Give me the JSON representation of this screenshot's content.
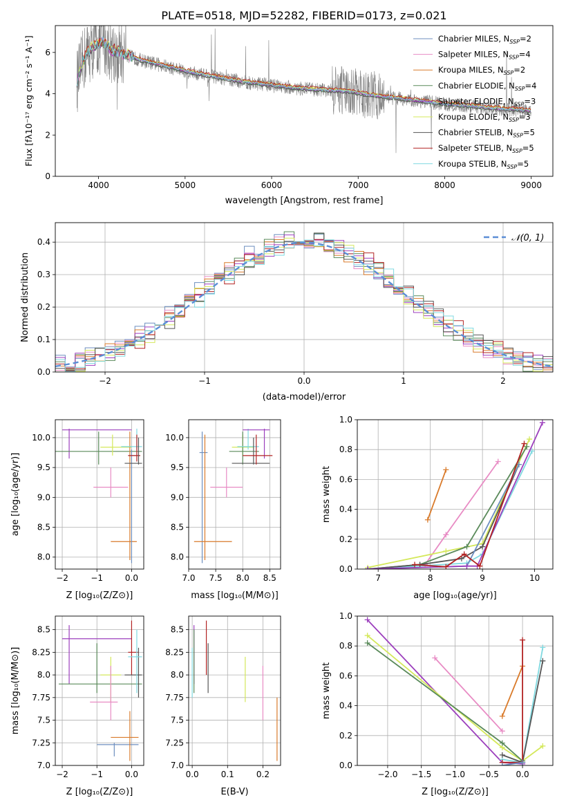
{
  "figure_title": "PLATE=0518, MJD=52282, FIBERID=0173, z=0.021",
  "chart_data": [
    {
      "id": "spectrum",
      "type": "line",
      "title": "PLATE=0518, MJD=52282, FIBERID=0173, z=0.021",
      "xlabel": "wavelength [Angstrom, rest frame]",
      "ylabel": "Flux [f_λ 10^-17 erg cm^-2 s^-1 A^-1]",
      "xlim": [
        3500,
        9250
      ],
      "ylim": [
        0,
        7.3
      ],
      "xticks": [
        4000,
        5000,
        6000,
        7000,
        8000,
        9000
      ],
      "yticks": [
        0,
        2,
        4,
        6
      ],
      "grid": false,
      "legend_position": "top-right",
      "data_continuum": {
        "x": [
          3750,
          3850,
          3950,
          4050,
          4150,
          4300,
          4500,
          4700,
          4900,
          5100,
          5300,
          5500,
          5700,
          5900,
          6100,
          6300,
          6500,
          6700,
          6900,
          7100,
          7300,
          7500,
          7700,
          7900,
          8100,
          8300,
          8500,
          8700,
          8900,
          9000
        ],
        "y": [
          4.6,
          5.9,
          6.3,
          6.5,
          6.1,
          5.9,
          5.6,
          5.4,
          5.2,
          5.0,
          4.85,
          4.7,
          4.55,
          4.45,
          4.35,
          4.25,
          4.2,
          4.15,
          4.1,
          3.95,
          3.85,
          3.75,
          3.65,
          3.55,
          3.45,
          3.4,
          3.3,
          3.25,
          3.2,
          3.15
        ]
      },
      "series": [
        {
          "name": "Chabrier MILES, N_SSP=2",
          "color": "#6c8ebf",
          "offset": 0.03
        },
        {
          "name": "Salpeter MILES, N_SSP=4",
          "color": "#e88bc4",
          "offset": -0.02
        },
        {
          "name": "Kroupa MILES, N_SSP=2",
          "color": "#d97a2a",
          "offset": 0.05
        },
        {
          "name": "Chabrier ELODIE, N_SSP=4",
          "color": "#5a8a5a",
          "offset": -0.04
        },
        {
          "name": "Salpeter ELODIE, N_SSP=3",
          "color": "#9c3fbd",
          "offset": 0.0
        },
        {
          "name": "Kroupa ELODIE, N_SSP=3",
          "color": "#d4e85a",
          "offset": 0.08
        },
        {
          "name": "Chabrier STELIB, N_SSP=5",
          "color": "#555555",
          "offset": -0.06
        },
        {
          "name": "Salpeter STELIB, N_SSP=5",
          "color": "#b22222",
          "offset": 0.1
        },
        {
          "name": "Kroupa STELIB, N_SSP=5",
          "color": "#7fd9e0",
          "offset": 0.02
        }
      ],
      "legend": [
        {
          "name": "Chabrier MILES, N",
          "sub": "SSP",
          "n": "=2"
        },
        {
          "name": "Salpeter MILES, N",
          "sub": "SSP",
          "n": "=4"
        },
        {
          "name": "Kroupa MILES, N",
          "sub": "SSP",
          "n": "=2"
        },
        {
          "name": "Chabrier ELODIE, N",
          "sub": "SSP",
          "n": "=4"
        },
        {
          "name": "Salpeter ELODIE, N",
          "sub": "SSP",
          "n": "=3"
        },
        {
          "name": "Kroupa ELODIE, N",
          "sub": "SSP",
          "n": "=3"
        },
        {
          "name": "Chabrier STELIB, N",
          "sub": "SSP",
          "n": "=5"
        },
        {
          "name": "Salpeter STELIB, N",
          "sub": "SSP",
          "n": "=5"
        },
        {
          "name": "Kroupa STELIB, N",
          "sub": "SSP",
          "n": "=5"
        }
      ]
    },
    {
      "id": "residuals",
      "type": "histogram",
      "xlabel": "(data-model)/error",
      "ylabel": "Normed distribution",
      "xlim": [
        -2.5,
        2.5
      ],
      "ylim": [
        0,
        0.46
      ],
      "xticks": [
        -2,
        -1,
        0,
        1,
        2
      ],
      "yticks": [
        0.0,
        0.1,
        0.2,
        0.3,
        0.4
      ],
      "grid": true,
      "legend": [
        {
          "label": "N(0,1)",
          "style": "dashed",
          "color": "#5b8ed6"
        }
      ]
    },
    {
      "id": "age_vs_Z",
      "type": "errorbar",
      "xlabel": "Z [log10(Z/Z⊙)]",
      "ylabel": "age [log10(age/yr)]",
      "xlim": [
        -2.2,
        0.35
      ],
      "ylim": [
        7.8,
        10.3
      ],
      "xticks": [
        -2,
        -1,
        0
      ],
      "yticks": [
        8.0,
        8.5,
        9.0,
        9.5,
        10.0
      ],
      "grid": true,
      "points": [
        {
          "color": "#9c3fbd",
          "x": [
            -2.0,
            0.0
          ],
          "y": [
            9.65,
            10.15
          ],
          "cx": -1.8,
          "cy": 10.13
        },
        {
          "color": "#5a8a5a",
          "x": [
            -2.2,
            0.3
          ],
          "y": [
            9.55,
            10.1
          ],
          "cx": -0.95,
          "cy": 9.77
        },
        {
          "color": "#d4e85a",
          "x": [
            -0.9,
            0.0
          ],
          "y": [
            9.7,
            10.05
          ],
          "cx": -0.55,
          "cy": 9.84
        },
        {
          "color": "#e88bc4",
          "x": [
            -1.1,
            -0.1
          ],
          "y": [
            9.0,
            9.5
          ],
          "cx": -0.6,
          "cy": 9.17
        },
        {
          "color": "#d97a2a",
          "x": [
            -0.6,
            0.15
          ],
          "y": [
            7.95,
            10.1
          ],
          "cx": -0.05,
          "cy": 8.26
        },
        {
          "color": "#6c8ebf",
          "x": [
            -0.1,
            0.2
          ],
          "y": [
            7.9,
            9.8
          ],
          "cx": 0.0,
          "cy": 9.7
        },
        {
          "color": "#7fd9e0",
          "x": [
            -0.3,
            0.3
          ],
          "y": [
            9.8,
            10.15
          ],
          "cx": 0.15,
          "cy": 9.85
        },
        {
          "color": "#b22222",
          "x": [
            -0.1,
            0.25
          ],
          "y": [
            9.6,
            10.05
          ],
          "cx": 0.15,
          "cy": 9.7
        },
        {
          "color": "#555555",
          "x": [
            -0.2,
            0.3
          ],
          "y": [
            9.55,
            10.0
          ],
          "cx": 0.2,
          "cy": 9.57
        }
      ]
    },
    {
      "id": "age_vs_mass",
      "type": "errorbar",
      "xlabel": "mass [log10(M/M⊙)]",
      "ylabel": "",
      "xlim": [
        7.0,
        8.7
      ],
      "ylim": [
        7.8,
        10.3
      ],
      "xticks": [
        7.0,
        7.5,
        8.0,
        8.5
      ],
      "yticks": [
        8.0,
        8.5,
        9.0,
        9.5,
        10.0
      ],
      "grid": true,
      "points": [
        {
          "color": "#6c8ebf",
          "x": [
            7.2,
            7.35
          ],
          "y": [
            7.9,
            10.1
          ],
          "cx": 7.25,
          "cy": 9.75
        },
        {
          "color": "#d97a2a",
          "x": [
            7.1,
            7.8
          ],
          "y": [
            7.95,
            10.05
          ],
          "cx": 7.3,
          "cy": 8.26
        },
        {
          "color": "#e88bc4",
          "x": [
            7.4,
            8.0
          ],
          "y": [
            9.0,
            9.5
          ],
          "cx": 7.7,
          "cy": 9.17
        },
        {
          "color": "#d4e85a",
          "x": [
            7.8,
            8.2
          ],
          "y": [
            9.7,
            10.05
          ],
          "cx": 8.0,
          "cy": 9.84
        },
        {
          "color": "#5a8a5a",
          "x": [
            7.75,
            8.3
          ],
          "y": [
            9.55,
            10.1
          ],
          "cx": 8.0,
          "cy": 9.77
        },
        {
          "color": "#7fd9e0",
          "x": [
            7.9,
            8.3
          ],
          "y": [
            9.8,
            10.15
          ],
          "cx": 8.1,
          "cy": 9.85
        },
        {
          "color": "#9c3fbd",
          "x": [
            8.0,
            8.5
          ],
          "y": [
            9.65,
            10.15
          ],
          "cx": 8.4,
          "cy": 10.13
        },
        {
          "color": "#555555",
          "x": [
            7.8,
            8.5
          ],
          "y": [
            9.55,
            10.0
          ],
          "cx": 8.2,
          "cy": 9.57
        },
        {
          "color": "#b22222",
          "x": [
            8.0,
            8.55
          ],
          "y": [
            9.55,
            10.05
          ],
          "cx": 8.25,
          "cy": 9.7
        }
      ]
    },
    {
      "id": "weight_vs_age",
      "type": "line",
      "xlabel": "age [log10(age/yr)]",
      "ylabel": "mass weight",
      "xlim": [
        6.6,
        10.35
      ],
      "ylim": [
        0,
        1.0
      ],
      "xticks": [
        7,
        8,
        9,
        10
      ],
      "yticks": [
        0.0,
        0.2,
        0.4,
        0.6,
        0.8,
        1.0
      ],
      "grid": true,
      "series": [
        {
          "color": "#d97a2a",
          "x": [
            7.95,
            8.3
          ],
          "y": [
            0.33,
            0.665
          ]
        },
        {
          "color": "#e88bc4",
          "x": [
            7.9,
            8.3,
            9.3
          ],
          "y": [
            0.03,
            0.23,
            0.72
          ]
        },
        {
          "color": "#d4e85a",
          "x": [
            6.8,
            8.3,
            9.0,
            9.9
          ],
          "y": [
            0.01,
            0.12,
            0.17,
            0.87
          ]
        },
        {
          "color": "#7fd9e0",
          "x": [
            6.8,
            8.7,
            9.0,
            9.95
          ],
          "y": [
            0.0,
            0.04,
            0.1,
            0.79
          ]
        },
        {
          "color": "#5a8a5a",
          "x": [
            6.8,
            7.8,
            8.7,
            9.85
          ],
          "y": [
            0.0,
            0.03,
            0.15,
            0.82
          ]
        },
        {
          "color": "#555555",
          "x": [
            6.8,
            7.8,
            8.6,
            9.0,
            9.7
          ],
          "y": [
            0.0,
            0.03,
            0.07,
            0.15,
            0.7
          ]
        },
        {
          "color": "#6c8ebf",
          "x": [
            6.8,
            8.7,
            9.7
          ],
          "y": [
            0.0,
            0.02,
            0.7
          ]
        },
        {
          "color": "#9c3fbd",
          "x": [
            6.8,
            8.7,
            8.9,
            10.15
          ],
          "y": [
            0.0,
            0.02,
            0.02,
            0.98
          ]
        },
        {
          "color": "#b22222",
          "x": [
            7.7,
            8.3,
            8.65,
            8.95,
            9.8
          ],
          "y": [
            0.03,
            0.015,
            0.1,
            0.02,
            0.84
          ]
        }
      ]
    },
    {
      "id": "mass_vs_Z",
      "type": "errorbar",
      "xlabel": "Z [log10(Z/Z⊙)]",
      "ylabel": "mass [log10(M/M⊙)]",
      "xlim": [
        -2.2,
        0.35
      ],
      "ylim": [
        7.0,
        8.65
      ],
      "xticks": [
        -2,
        -1,
        0
      ],
      "yticks": [
        7.0,
        7.25,
        7.5,
        7.75,
        8.0,
        8.25,
        8.5
      ],
      "grid": true,
      "points": [
        {
          "color": "#9c3fbd",
          "x": [
            -2.0,
            0.0
          ],
          "y": [
            7.9,
            8.55
          ],
          "cx": -1.8,
          "cy": 8.4
        },
        {
          "color": "#5a8a5a",
          "x": [
            -2.1,
            0.3
          ],
          "y": [
            7.8,
            8.35
          ],
          "cx": -1.0,
          "cy": 7.9
        },
        {
          "color": "#d4e85a",
          "x": [
            -0.9,
            -0.3
          ],
          "y": [
            7.7,
            8.2
          ],
          "cx": -0.6,
          "cy": 8.0
        },
        {
          "color": "#e88bc4",
          "x": [
            -1.2,
            -0.4
          ],
          "y": [
            7.5,
            8.1
          ],
          "cx": -0.6,
          "cy": 7.7
        },
        {
          "color": "#6c8ebf",
          "x": [
            -1.0,
            0.2
          ],
          "y": [
            7.1,
            7.25
          ],
          "cx": -0.5,
          "cy": 7.23
        },
        {
          "color": "#d97a2a",
          "x": [
            -0.6,
            0.2
          ],
          "y": [
            7.05,
            7.6
          ],
          "cx": -0.05,
          "cy": 7.31
        },
        {
          "color": "#b22222",
          "x": [
            -0.1,
            0.2
          ],
          "y": [
            8.0,
            8.6
          ],
          "cx": 0.0,
          "cy": 8.25
        },
        {
          "color": "#555555",
          "x": [
            -0.2,
            0.3
          ],
          "y": [
            7.75,
            8.3
          ],
          "cx": 0.2,
          "cy": 8.0
        },
        {
          "color": "#7fd9e0",
          "x": [
            -0.1,
            0.3
          ],
          "y": [
            7.8,
            8.5
          ],
          "cx": 0.15,
          "cy": 8.2
        }
      ]
    },
    {
      "id": "mass_vs_ebv",
      "type": "errorbar",
      "xlabel": "E(B-V)",
      "ylabel": "",
      "xlim": [
        -0.01,
        0.25
      ],
      "ylim": [
        7.0,
        8.65
      ],
      "xticks": [
        0.0,
        0.1,
        0.2
      ],
      "yticks": [
        7.0,
        7.25,
        7.5,
        7.75,
        8.0,
        8.25,
        8.5
      ],
      "grid": true,
      "points": [
        {
          "color": "#7fd9e0",
          "x": [
            0.0,
            0.0
          ],
          "y": [
            7.75,
            8.3
          ],
          "cx": 0.0,
          "cy": 8.0
        },
        {
          "color": "#9c3fbd",
          "x": [
            0.005,
            0.005
          ],
          "y": [
            7.9,
            8.55
          ],
          "cx": 0.005,
          "cy": 8.2
        },
        {
          "color": "#5a8a5a",
          "x": [
            0.005,
            0.005
          ],
          "y": [
            7.8,
            8.5
          ],
          "cx": 0.005,
          "cy": 8.1
        },
        {
          "color": "#b22222",
          "x": [
            0.04,
            0.04
          ],
          "y": [
            8.0,
            8.6
          ],
          "cx": 0.04,
          "cy": 8.3
        },
        {
          "color": "#555555",
          "x": [
            0.045,
            0.045
          ],
          "y": [
            7.8,
            8.35
          ],
          "cx": 0.045,
          "cy": 8.05
        },
        {
          "color": "#d4e85a",
          "x": [
            0.15,
            0.15
          ],
          "y": [
            7.7,
            8.2
          ],
          "cx": 0.15,
          "cy": 7.95
        },
        {
          "color": "#e88bc4",
          "x": [
            0.2,
            0.2
          ],
          "y": [
            7.5,
            8.1
          ],
          "cx": 0.2,
          "cy": 7.8
        },
        {
          "color": "#d97a2a",
          "x": [
            0.24,
            0.24
          ],
          "y": [
            7.05,
            7.75
          ],
          "cx": 0.24,
          "cy": 7.4
        }
      ]
    },
    {
      "id": "weight_vs_Z",
      "type": "line",
      "xlabel": "Z [log10(Z/Z⊙)]",
      "ylabel": "mass weight",
      "xlim": [
        -2.45,
        0.45
      ],
      "ylim": [
        0,
        1.0
      ],
      "xticks": [
        -2.0,
        -1.5,
        -1.0,
        -0.5,
        0.0
      ],
      "yticks": [
        0.0,
        0.2,
        0.4,
        0.6,
        0.8,
        1.0
      ],
      "grid": true,
      "series": [
        {
          "color": "#9c3fbd",
          "x": [
            -2.3,
            -0.3,
            0.0
          ],
          "y": [
            0.975,
            0.02,
            0.01
          ]
        },
        {
          "color": "#d4e85a",
          "x": [
            -2.3,
            -0.3,
            0.0,
            0.3
          ],
          "y": [
            0.87,
            0.12,
            0.03,
            0.13
          ]
        },
        {
          "color": "#5a8a5a",
          "x": [
            -2.3,
            -0.3,
            0.0
          ],
          "y": [
            0.82,
            0.15,
            0.03
          ]
        },
        {
          "color": "#e88bc4",
          "x": [
            -1.3,
            -0.3
          ],
          "y": [
            0.72,
            0.23
          ]
        },
        {
          "color": "#d97a2a",
          "x": [
            -0.3,
            0.0
          ],
          "y": [
            0.33,
            0.665
          ]
        },
        {
          "color": "#7fd9e0",
          "x": [
            -0.3,
            0.0,
            0.3
          ],
          "y": [
            0.04,
            0.02,
            0.79
          ]
        },
        {
          "color": "#555555",
          "x": [
            -0.3,
            0.0,
            0.3
          ],
          "y": [
            0.07,
            0.02,
            0.7
          ]
        },
        {
          "color": "#b22222",
          "x": [
            -0.3,
            0.0,
            0.0
          ],
          "y": [
            0.02,
            0.02,
            0.84
          ]
        },
        {
          "color": "#6c8ebf",
          "x": [
            -0.3,
            0.0
          ],
          "y": [
            0.0,
            0.02
          ]
        }
      ]
    }
  ]
}
